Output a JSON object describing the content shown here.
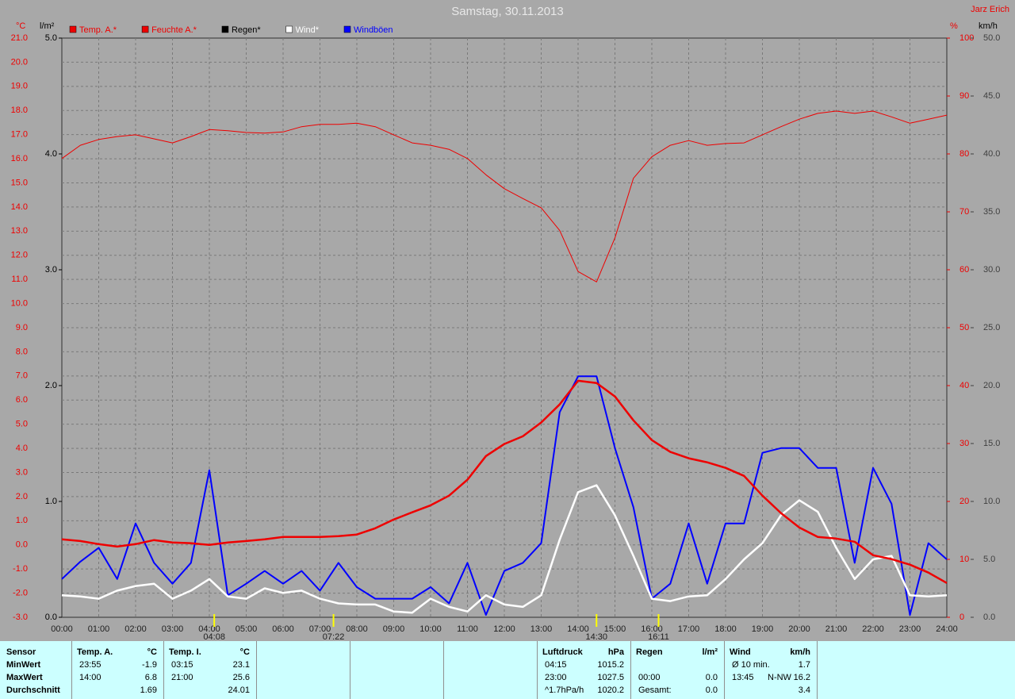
{
  "chart_data": {
    "type": "line",
    "title": "Samstag, 30.11.2013",
    "author": "Jarz Erich",
    "y_unit": "°C",
    "y4_unit": "l/m²",
    "y2_unit": "%",
    "y3_unit": "km/h",
    "grid": true,
    "xlim": [
      0,
      24
    ],
    "xticks": [
      {
        "value": 0,
        "label": "00:00"
      },
      {
        "value": 1,
        "label": "01:00"
      },
      {
        "value": 2,
        "label": "02:00"
      },
      {
        "value": 3,
        "label": "03:00"
      },
      {
        "value": 4,
        "label": "04:00"
      },
      {
        "value": 5,
        "label": "05:00"
      },
      {
        "value": 6,
        "label": "06:00"
      },
      {
        "value": 7,
        "label": "07:00"
      },
      {
        "value": 8,
        "label": "08:00"
      },
      {
        "value": 9,
        "label": "09:00"
      },
      {
        "value": 10,
        "label": "10:00"
      },
      {
        "value": 11,
        "label": "11:00"
      },
      {
        "value": 12,
        "label": "12:00"
      },
      {
        "value": 13,
        "label": "13:00"
      },
      {
        "value": 14,
        "label": "14:00"
      },
      {
        "value": 15,
        "label": "15:00"
      },
      {
        "value": 16,
        "label": "16:00"
      },
      {
        "value": 17,
        "label": "17:00"
      },
      {
        "value": 18,
        "label": "18:00"
      },
      {
        "value": 19,
        "label": "19:00"
      },
      {
        "value": 20,
        "label": "20:00"
      },
      {
        "value": 21,
        "label": "21:00"
      },
      {
        "value": 22,
        "label": "22:00"
      },
      {
        "value": 23,
        "label": "23:00"
      },
      {
        "value": 24,
        "label": "24:00"
      }
    ],
    "ylim": [
      -3,
      21
    ],
    "yticks": [
      {
        "value": 21,
        "label": "21.0"
      },
      {
        "value": 20,
        "label": "20.0"
      },
      {
        "value": 19,
        "label": "19.0"
      },
      {
        "value": 18,
        "label": "18.0"
      },
      {
        "value": 17,
        "label": "17.0"
      },
      {
        "value": 16,
        "label": "16.0"
      },
      {
        "value": 15,
        "label": "15.0"
      },
      {
        "value": 14,
        "label": "14.0"
      },
      {
        "value": 13,
        "label": "13.0"
      },
      {
        "value": 12,
        "label": "12.0"
      },
      {
        "value": 11,
        "label": "11.0"
      },
      {
        "value": 10,
        "label": "10.0"
      },
      {
        "value": 9,
        "label": "9.0"
      },
      {
        "value": 8,
        "label": "8.0"
      },
      {
        "value": 7,
        "label": "7.0"
      },
      {
        "value": 6,
        "label": "6.0"
      },
      {
        "value": 5,
        "label": "5.0"
      },
      {
        "value": 4,
        "label": "4.0"
      },
      {
        "value": 3,
        "label": "3.0"
      },
      {
        "value": 2,
        "label": "2.0"
      },
      {
        "value": 1,
        "label": "1.0"
      },
      {
        "value": 0,
        "label": "0.0"
      },
      {
        "value": -1,
        "label": "-1.0"
      },
      {
        "value": -2,
        "label": "-2.0"
      },
      {
        "value": -3,
        "label": "-3.0"
      }
    ],
    "y4lim": [
      0,
      5
    ],
    "y4ticks": [
      {
        "value": 5,
        "label": "5.0"
      },
      {
        "value": 4,
        "label": "4.0"
      },
      {
        "value": 3,
        "label": "3.0"
      },
      {
        "value": 2,
        "label": "2.0"
      },
      {
        "value": 1,
        "label": "1.0"
      },
      {
        "value": 0,
        "label": "0.0"
      }
    ],
    "y2lim": [
      0,
      100
    ],
    "y2ticks": [
      100,
      90,
      80,
      70,
      60,
      50,
      40,
      30,
      20,
      10,
      0
    ],
    "y3lim": [
      0,
      50
    ],
    "y3ticks": [
      {
        "value": 50,
        "label": "50.0"
      },
      {
        "value": 45,
        "label": "45.0"
      },
      {
        "value": 40,
        "label": "40.0"
      },
      {
        "value": 35,
        "label": "35.0"
      },
      {
        "value": 30,
        "label": "30.0"
      },
      {
        "value": 25,
        "label": "25.0"
      },
      {
        "value": 20,
        "label": "20.0"
      },
      {
        "value": 15,
        "label": "15.0"
      },
      {
        "value": 10,
        "label": "10.0"
      },
      {
        "value": 5,
        "label": "5.0"
      },
      {
        "value": 0,
        "label": "0.0"
      }
    ],
    "x": [
      0,
      0.5,
      1,
      1.5,
      2,
      2.5,
      3,
      3.5,
      4,
      4.5,
      5,
      5.5,
      6,
      6.5,
      7,
      7.5,
      8,
      8.5,
      9,
      9.5,
      10,
      10.5,
      11,
      11.5,
      12,
      12.5,
      13,
      13.5,
      14,
      14.5,
      15,
      15.5,
      16,
      16.5,
      17,
      17.5,
      18,
      18.5,
      19,
      19.5,
      20,
      20.5,
      21,
      21.5,
      22,
      22.5,
      23,
      23.5,
      24
    ],
    "series": [
      {
        "name": "Temp. A.*",
        "color": "#ee0000",
        "axis": "y",
        "width": 2.5,
        "values": [
          0.23,
          0.16,
          0.03,
          -0.07,
          0.03,
          0.2,
          0.1,
          0.07,
          0,
          0.1,
          0.16,
          0.23,
          0.33,
          0.33,
          0.33,
          0.36,
          0.43,
          0.69,
          1.05,
          1.35,
          1.64,
          2.04,
          2.7,
          3.68,
          4.18,
          4.5,
          5.07,
          5.82,
          6.8,
          6.71,
          6.15,
          5.16,
          4.34,
          3.85,
          3.59,
          3.42,
          3.19,
          2.86,
          2.04,
          1.32,
          0.72,
          0.33,
          0.26,
          0.13,
          -0.43,
          -0.59,
          -0.82,
          -1.15,
          -1.58
        ]
      },
      {
        "name": "Feuchte A.*",
        "color": "#ee0000",
        "axis": "y2",
        "width": 1,
        "values": [
          79.2,
          81.5,
          82.5,
          83,
          83.3,
          82.6,
          81.9,
          83,
          84.2,
          84,
          83.7,
          83.6,
          83.8,
          84.7,
          85.1,
          85.1,
          85.3,
          84.7,
          83.3,
          81.9,
          81.5,
          80.8,
          79.2,
          76.4,
          74,
          72.3,
          70.7,
          66.8,
          59.7,
          57.9,
          65.5,
          75.8,
          79.5,
          81.5,
          82.3,
          81.5,
          81.8,
          81.9,
          83.3,
          84.7,
          86,
          87,
          87.4,
          87,
          87.4,
          86.4,
          85.3,
          86,
          86.7
        ]
      },
      {
        "name": "Regen*",
        "color": "#000000",
        "axis": "y4"
      },
      {
        "name": "Wind*",
        "color": "#ffffff",
        "axis": "y3",
        "width": 2.5,
        "values": [
          1.9,
          1.8,
          1.6,
          2.3,
          2.7,
          2.9,
          1.6,
          2.3,
          3.3,
          1.8,
          1.6,
          2.5,
          2.1,
          2.3,
          1.6,
          1.2,
          1.1,
          1.1,
          0.5,
          0.4,
          1.6,
          0.9,
          0.5,
          1.9,
          1.1,
          0.9,
          1.9,
          6.7,
          10.8,
          11.4,
          8.8,
          5.3,
          1.6,
          1.4,
          1.8,
          1.9,
          3.3,
          5,
          6.4,
          8.8,
          10.1,
          9.1,
          6,
          3.3,
          5,
          5.3,
          1.9,
          1.8,
          1.9
        ]
      },
      {
        "name": "Windböen",
        "color": "#0000ff",
        "axis": "y3",
        "width": 2,
        "values": [
          3.3,
          4.8,
          6,
          3.3,
          8.1,
          4.7,
          2.9,
          4.7,
          12.7,
          1.9,
          2.9,
          4,
          2.9,
          4,
          2.3,
          4.7,
          2.6,
          1.6,
          1.6,
          1.6,
          2.6,
          1.2,
          4.7,
          0.2,
          4,
          4.7,
          6.4,
          17.7,
          20.8,
          20.8,
          14.6,
          9.5,
          1.6,
          2.9,
          8.1,
          2.9,
          8.1,
          8.1,
          14.2,
          14.6,
          14.6,
          12.9,
          12.9,
          4.7,
          12.9,
          9.8,
          0.2,
          6.4,
          5
        ]
      }
    ],
    "events": [
      {
        "x": 4.133,
        "label": "04:08"
      },
      {
        "x": 7.367,
        "label": "07:22"
      },
      {
        "x": 14.5,
        "label": "14:30"
      },
      {
        "x": 16.183,
        "label": "16:11"
      }
    ]
  },
  "table": {
    "row_labels": [
      "Sensor",
      "MinWert",
      "MaxWert",
      "Durchschnitt"
    ],
    "panels": [
      {
        "header": "Temp. A.",
        "unit": "°C",
        "min": {
          "time": "23:55",
          "value": "-1.9"
        },
        "max": {
          "time": "14:00",
          "value": "6.8"
        },
        "avg": {
          "value": "1.69"
        }
      },
      {
        "header": "Temp. I.",
        "unit": "°C",
        "min": {
          "time": "03:15",
          "value": "23.1"
        },
        "max": {
          "time": "21:00",
          "value": "25.6"
        },
        "avg": {
          "value": "24.01"
        }
      },
      {
        "header": "Luftdruck",
        "unit": "hPa",
        "min": {
          "time": "04:15",
          "value": "1015.2"
        },
        "max": {
          "time": "23:00",
          "value": "1027.5"
        },
        "avg": {
          "time": "^1.7hPa/h",
          "value": "1020.2"
        }
      },
      {
        "header": "Regen",
        "unit": "l/m²",
        "max": {
          "time": "00:00",
          "value": "0.0"
        },
        "avg": {
          "time": "Gesamt:",
          "value": "0.0"
        }
      },
      {
        "header": "Wind",
        "unit": "km/h",
        "min": {
          "time": "Ø 10 min.",
          "value": "1.7"
        },
        "max": {
          "time": "13:45",
          "dir": "N-NW",
          "value": "16.2"
        },
        "avg": {
          "value": "3.4"
        }
      }
    ]
  }
}
